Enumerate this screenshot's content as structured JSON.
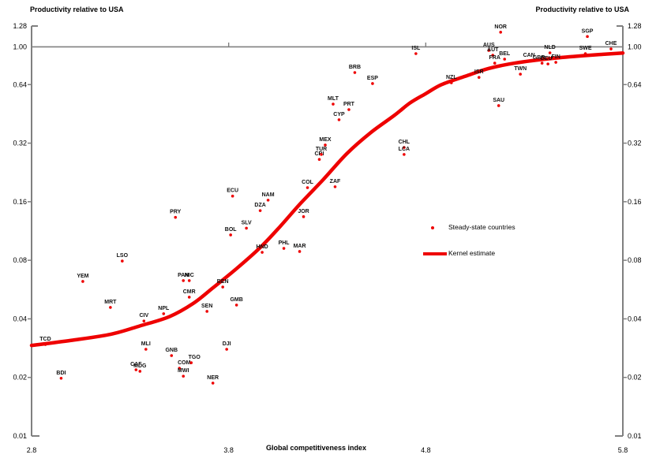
{
  "chart_data": {
    "type": "scatter",
    "ylabel_left": "Productivity relative to USA",
    "ylabel_right": "Productivity relative to USA",
    "xlabel": "Global competitiveness index",
    "x_range": [
      2.8,
      5.8
    ],
    "y_range": [
      0.01,
      1.28
    ],
    "y_scale": "log2",
    "grid": false,
    "x_tick_values": [
      2.8,
      3.8,
      4.8,
      5.8
    ],
    "x_tick_labels": [
      "2.8",
      "3.8",
      "4.8",
      "5.8"
    ],
    "y_tick_values": [
      1.28,
      1.0,
      0.64,
      0.32,
      0.16,
      0.08,
      0.04,
      0.02,
      0.01
    ],
    "y_tick_labels": [
      "1.28",
      "1.00",
      "0.64",
      "0.32",
      "0.16",
      "0.08",
      "0.04",
      "0.02",
      "0.01"
    ],
    "reference_line": {
      "y": 1.0,
      "tick_x": [
        3.8,
        4.8
      ]
    },
    "legend": {
      "scatter": "Steady-state countries",
      "line": "Kernel estimate"
    },
    "colors": {
      "accent_red": "#ee0000",
      "axis_gray": "#808080",
      "label_black": "#111111"
    },
    "series": [
      {
        "name": "Steady-state countries",
        "type": "scatter",
        "points": [
          {
            "code": "TCD",
            "x": 2.87,
            "y": 0.0295
          },
          {
            "code": "BDI",
            "x": 2.95,
            "y": 0.0198
          },
          {
            "code": "YEM",
            "x": 3.06,
            "y": 0.0623
          },
          {
            "code": "MRT",
            "x": 3.2,
            "y": 0.0458
          },
          {
            "code": "LSO",
            "x": 3.26,
            "y": 0.0793
          },
          {
            "code": "CAF",
            "x": 3.33,
            "y": 0.0219
          },
          {
            "code": "MDG",
            "x": 3.35,
            "y": 0.0215
          },
          {
            "code": "CIV",
            "x": 3.37,
            "y": 0.039
          },
          {
            "code": "MLI",
            "x": 3.38,
            "y": 0.0279
          },
          {
            "code": "NPL",
            "x": 3.47,
            "y": 0.0425
          },
          {
            "code": "GNB",
            "x": 3.51,
            "y": 0.0259
          },
          {
            "code": "PRY",
            "x": 3.53,
            "y": 0.133
          },
          {
            "code": "COM",
            "x": 3.55,
            "y": 0.0223,
            "dx": 6
          },
          {
            "code": "PAN",
            "x": 3.57,
            "y": 0.0629
          },
          {
            "code": "MWI",
            "x": 3.57,
            "y": 0.0203
          },
          {
            "code": "NIC",
            "x": 3.6,
            "y": 0.0629
          },
          {
            "code": "CMR",
            "x": 3.6,
            "y": 0.0517
          },
          {
            "code": "TGO",
            "x": 3.61,
            "y": 0.0238,
            "dx": 4
          },
          {
            "code": "SEN",
            "x": 3.69,
            "y": 0.0437
          },
          {
            "code": "NER",
            "x": 3.72,
            "y": 0.0187
          },
          {
            "code": "BEN",
            "x": 3.77,
            "y": 0.0583
          },
          {
            "code": "DJI",
            "x": 3.79,
            "y": 0.0279
          },
          {
            "code": "BOL",
            "x": 3.81,
            "y": 0.108
          },
          {
            "code": "ECU",
            "x": 3.82,
            "y": 0.171
          },
          {
            "code": "GMB",
            "x": 3.84,
            "y": 0.0471
          },
          {
            "code": "SLV",
            "x": 3.89,
            "y": 0.117
          },
          {
            "code": "DZA",
            "x": 3.96,
            "y": 0.144
          },
          {
            "code": "HND",
            "x": 3.97,
            "y": 0.0879
          },
          {
            "code": "NAM",
            "x": 4.0,
            "y": 0.163
          },
          {
            "code": "PHL",
            "x": 4.08,
            "y": 0.0921
          },
          {
            "code": "MAR",
            "x": 4.16,
            "y": 0.0888
          },
          {
            "code": "JOR",
            "x": 4.18,
            "y": 0.134
          },
          {
            "code": "COL",
            "x": 4.2,
            "y": 0.189
          },
          {
            "code": "CRI",
            "x": 4.26,
            "y": 0.264
          },
          {
            "code": "TUR",
            "x": 4.27,
            "y": 0.28
          },
          {
            "code": "MEX",
            "x": 4.29,
            "y": 0.313
          },
          {
            "code": "MLT",
            "x": 4.33,
            "y": 0.508
          },
          {
            "code": "ZAF",
            "x": 4.34,
            "y": 0.191
          },
          {
            "code": "CYP",
            "x": 4.36,
            "y": 0.422
          },
          {
            "code": "PRT",
            "x": 4.41,
            "y": 0.476
          },
          {
            "code": "BRB",
            "x": 4.44,
            "y": 0.738
          },
          {
            "code": "ESP",
            "x": 4.53,
            "y": 0.648
          },
          {
            "code": "CHL",
            "x": 4.69,
            "y": 0.304
          },
          {
            "code": "LCA",
            "x": 4.69,
            "y": 0.28
          },
          {
            "code": "ISL",
            "x": 4.75,
            "y": 0.923
          },
          {
            "code": "NZL",
            "x": 4.93,
            "y": 0.654
          },
          {
            "code": "ISR",
            "x": 5.07,
            "y": 0.697
          },
          {
            "code": "AUS",
            "x": 5.12,
            "y": 0.958
          },
          {
            "code": "AUT",
            "x": 5.14,
            "y": 0.906
          },
          {
            "code": "FRA",
            "x": 5.15,
            "y": 0.825
          },
          {
            "code": "SAU",
            "x": 5.17,
            "y": 0.499
          },
          {
            "code": "NOR",
            "x": 5.18,
            "y": 1.19
          },
          {
            "code": "BEL",
            "x": 5.2,
            "y": 0.865
          },
          {
            "code": "TWN",
            "x": 5.28,
            "y": 0.724
          },
          {
            "code": "CAN",
            "x": 5.34,
            "y": 0.849,
            "dx": -4
          },
          {
            "code": "GBR",
            "x": 5.39,
            "y": 0.825,
            "dx": -4
          },
          {
            "code": "DEU",
            "x": 5.42,
            "y": 0.817,
            "dx": -2
          },
          {
            "code": "NLD",
            "x": 5.43,
            "y": 0.932
          },
          {
            "code": "FIN",
            "x": 5.46,
            "y": 0.833
          },
          {
            "code": "SWE",
            "x": 5.61,
            "y": 0.923
          },
          {
            "code": "SGP",
            "x": 5.62,
            "y": 1.13
          },
          {
            "code": "CHE",
            "x": 5.74,
            "y": 0.976
          }
        ]
      },
      {
        "name": "Kernel estimate",
        "type": "line",
        "points": [
          [
            2.8,
            0.0292
          ],
          [
            3.0,
            0.031
          ],
          [
            3.2,
            0.0333
          ],
          [
            3.35,
            0.0368
          ],
          [
            3.5,
            0.0411
          ],
          [
            3.62,
            0.048
          ],
          [
            3.72,
            0.0577
          ],
          [
            3.84,
            0.0725
          ],
          [
            3.96,
            0.093
          ],
          [
            4.06,
            0.119
          ],
          [
            4.16,
            0.155
          ],
          [
            4.28,
            0.208
          ],
          [
            4.4,
            0.283
          ],
          [
            4.52,
            0.362
          ],
          [
            4.64,
            0.444
          ],
          [
            4.72,
            0.515
          ],
          [
            4.8,
            0.575
          ],
          [
            4.88,
            0.64
          ],
          [
            5.0,
            0.706
          ],
          [
            5.12,
            0.775
          ],
          [
            5.26,
            0.828
          ],
          [
            5.44,
            0.872
          ],
          [
            5.6,
            0.901
          ],
          [
            5.8,
            0.93
          ]
        ]
      }
    ]
  }
}
